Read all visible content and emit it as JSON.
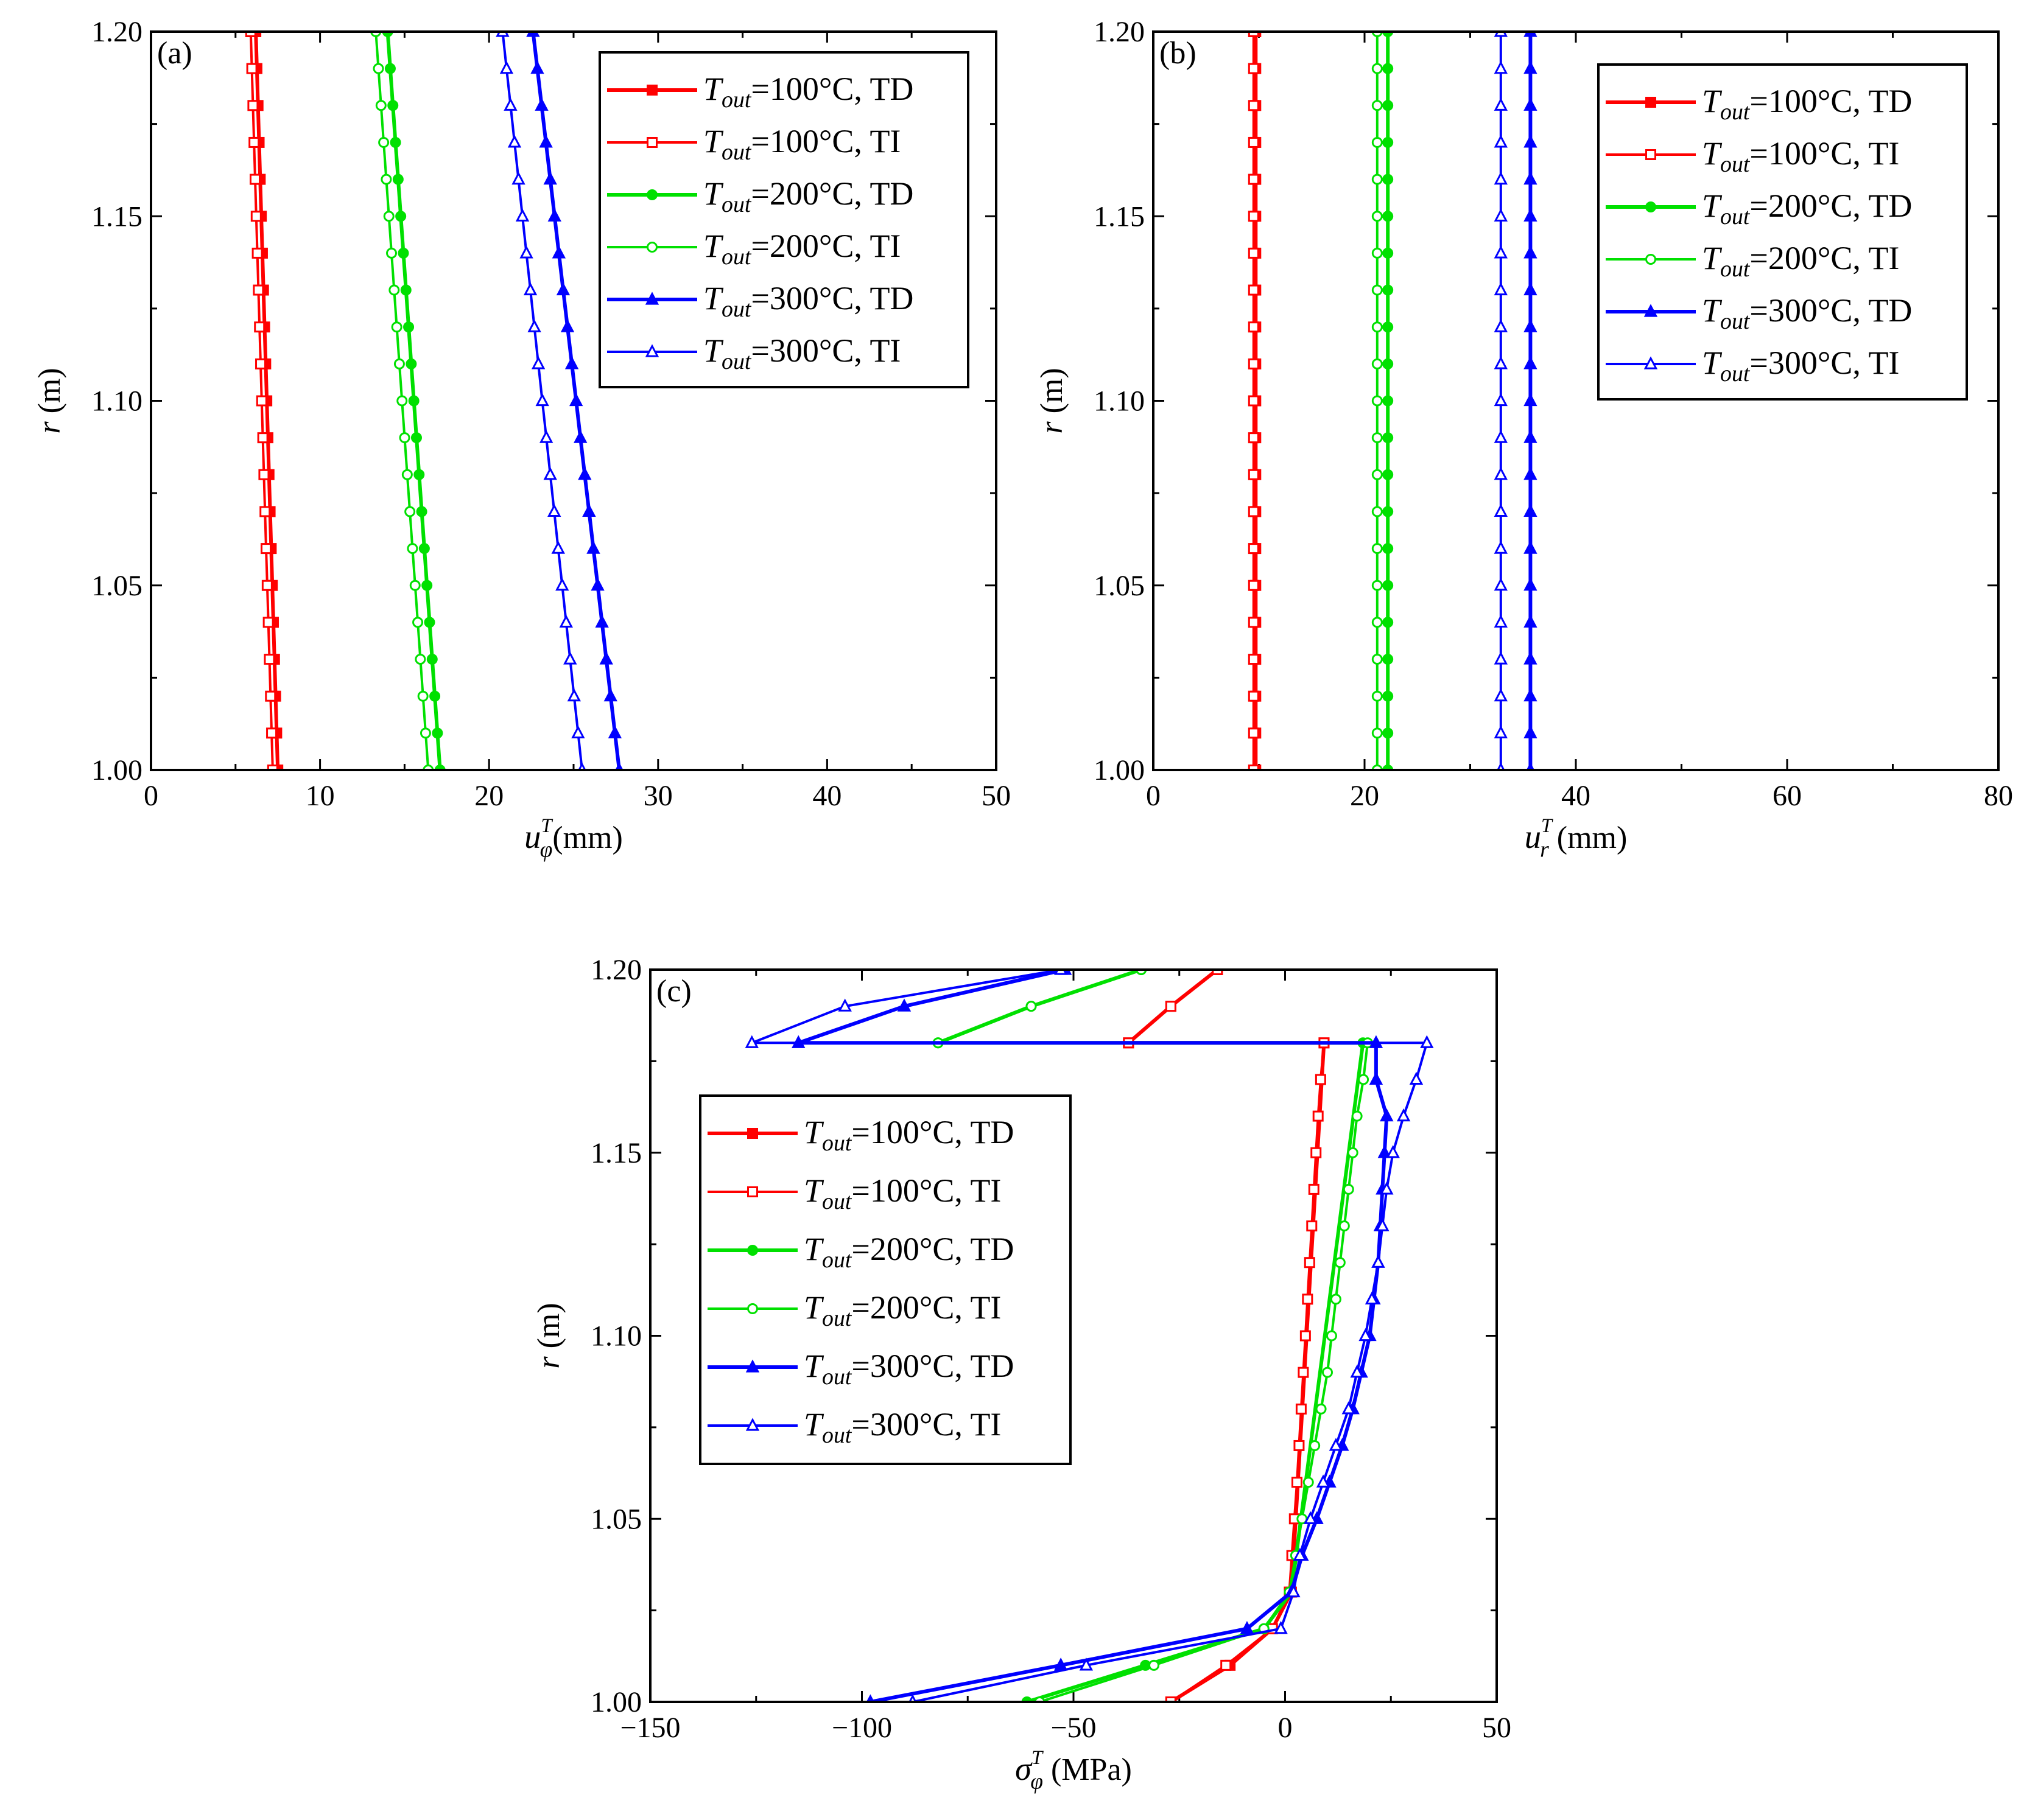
{
  "chart_data": [
    {
      "type": "line",
      "panel": "(a)",
      "xlabel_sym": "u",
      "xlabel_sup": "T",
      "xlabel_sub": "φ",
      "xlabel_unit": "(mm)",
      "ylabel_sym": "r",
      "ylabel_unit": " (m)",
      "xlim": [
        0,
        50
      ],
      "ylim": [
        1.0,
        1.2
      ],
      "xticks": [
        0,
        10,
        20,
        30,
        40,
        50
      ],
      "xticklabels": [
        "0",
        "10",
        "20",
        "30",
        "40",
        "50"
      ],
      "yticks": [
        1.0,
        1.05,
        1.1,
        1.15,
        1.2
      ],
      "yticklabels": [
        "1.00",
        "1.05",
        "1.10",
        "1.15",
        "1.20"
      ],
      "legend_position": "top-right",
      "series": [
        {
          "name": "T_out=100°C, TD",
          "temp": "100",
          "model": "TD",
          "color": "#ff0000",
          "marker": "square",
          "filled": true,
          "r": [
            1.0,
            1.2
          ],
          "x": [
            7.5,
            6.2
          ]
        },
        {
          "name": "T_out=100°C, TI",
          "temp": "100",
          "model": "TI",
          "color": "#ff0000",
          "marker": "square",
          "filled": false,
          "r": [
            1.0,
            1.2
          ],
          "x": [
            7.2,
            5.9
          ]
        },
        {
          "name": "T_out=200°C, TD",
          "temp": "200",
          "model": "TD",
          "color": "#00e000",
          "marker": "circle",
          "filled": true,
          "r": [
            1.0,
            1.2
          ],
          "x": [
            17.1,
            14.0
          ]
        },
        {
          "name": "T_out=200°C, TI",
          "temp": "200",
          "model": "TI",
          "color": "#00e000",
          "marker": "circle",
          "filled": false,
          "r": [
            1.0,
            1.2
          ],
          "x": [
            16.4,
            13.3
          ]
        },
        {
          "name": "T_out=300°C, TD",
          "temp": "300",
          "model": "TD",
          "color": "#0000ff",
          "marker": "triangle",
          "filled": true,
          "r": [
            1.0,
            1.2
          ],
          "x": [
            27.7,
            22.6
          ]
        },
        {
          "name": "T_out=300°C, TI",
          "temp": "300",
          "model": "TI",
          "color": "#0000ff",
          "marker": "triangle",
          "filled": false,
          "r": [
            1.0,
            1.2
          ],
          "x": [
            25.5,
            20.8
          ]
        }
      ]
    },
    {
      "type": "line",
      "panel": "(b)",
      "xlabel_sym": "u",
      "xlabel_sup": "T",
      "xlabel_sub": "r",
      "xlabel_unit": " (mm)",
      "ylabel_sym": "r",
      "ylabel_unit": " (m)",
      "xlim": [
        0,
        80
      ],
      "ylim": [
        1.0,
        1.2
      ],
      "xticks": [
        0,
        20,
        40,
        60,
        80
      ],
      "xticklabels": [
        "0",
        "20",
        "40",
        "60",
        "80"
      ],
      "yticks": [
        1.0,
        1.05,
        1.1,
        1.15,
        1.2
      ],
      "yticklabels": [
        "1.00",
        "1.05",
        "1.10",
        "1.15",
        "1.20"
      ],
      "legend_position": "top-right",
      "series": [
        {
          "name": "T_out=100°C, TD",
          "temp": "100",
          "model": "TD",
          "color": "#ff0000",
          "marker": "square",
          "filled": true,
          "r": [
            1.0,
            1.2
          ],
          "x": [
            9.7,
            9.7
          ]
        },
        {
          "name": "T_out=100°C, TI",
          "temp": "100",
          "model": "TI",
          "color": "#ff0000",
          "marker": "square",
          "filled": false,
          "r": [
            1.0,
            1.2
          ],
          "x": [
            9.5,
            9.5
          ]
        },
        {
          "name": "T_out=200°C, TD",
          "temp": "200",
          "model": "TD",
          "color": "#00e000",
          "marker": "circle",
          "filled": true,
          "r": [
            1.0,
            1.2
          ],
          "x": [
            22.2,
            22.2
          ]
        },
        {
          "name": "T_out=200°C, TI",
          "temp": "200",
          "model": "TI",
          "color": "#00e000",
          "marker": "circle",
          "filled": false,
          "r": [
            1.0,
            1.2
          ],
          "x": [
            21.2,
            21.2
          ]
        },
        {
          "name": "T_out=300°C, TD",
          "temp": "300",
          "model": "TD",
          "color": "#0000ff",
          "marker": "triangle",
          "filled": true,
          "r": [
            1.0,
            1.2
          ],
          "x": [
            35.7,
            35.7
          ]
        },
        {
          "name": "T_out=300°C, TI",
          "temp": "300",
          "model": "TI",
          "color": "#0000ff",
          "marker": "triangle",
          "filled": false,
          "r": [
            1.0,
            1.2
          ],
          "x": [
            32.9,
            32.9
          ]
        }
      ]
    },
    {
      "type": "line",
      "panel": "(c)",
      "xlabel_sym": "σ",
      "xlabel_sup": "T",
      "xlabel_sub": "φ",
      "xlabel_unit": " (MPa)",
      "ylabel_sym": "r",
      "ylabel_unit": " (m)",
      "xlim": [
        -150,
        50
      ],
      "ylim": [
        1.0,
        1.2
      ],
      "xticks": [
        -150,
        -100,
        -50,
        0,
        50
      ],
      "xticklabels": [
        "−150",
        "−100",
        "−50",
        "0",
        "50"
      ],
      "yticks": [
        1.0,
        1.05,
        1.1,
        1.15,
        1.2
      ],
      "yticklabels": [
        "1.00",
        "1.05",
        "1.10",
        "1.15",
        "1.20"
      ],
      "legend_position": "center-left",
      "series": [
        {
          "name": "T_out=100°C, TD",
          "temp": "100",
          "model": "TD",
          "color": "#ff0000",
          "marker": "square",
          "filled": true,
          "r": [
            1.0,
            1.01,
            1.02,
            1.03,
            1.18,
            1.18,
            1.19,
            1.2
          ],
          "x": [
            -27,
            -13,
            -3,
            1.5,
            9.2,
            -37,
            -27,
            -16
          ]
        },
        {
          "name": "T_out=100°C, TI",
          "temp": "100",
          "model": "TI",
          "color": "#ff0000",
          "marker": "square",
          "filled": false,
          "r": [
            1.0,
            1.01,
            1.02,
            1.03,
            1.04,
            1.05,
            1.06,
            1.07,
            1.08,
            1.09,
            1.1,
            1.11,
            1.12,
            1.13,
            1.14,
            1.15,
            1.16,
            1.17,
            1.18,
            1.18,
            1.19,
            1.2
          ],
          "x": [
            -27,
            -14,
            -3,
            1,
            1.6,
            2.2,
            2.8,
            3.3,
            3.8,
            4.3,
            4.8,
            5.3,
            5.8,
            6.3,
            6.8,
            7.3,
            7.8,
            8.4,
            9.2,
            -37,
            -27,
            -16
          ]
        },
        {
          "name": "T_out=200°C, TD",
          "temp": "200",
          "model": "TD",
          "color": "#00e000",
          "marker": "circle",
          "filled": true,
          "r": [
            1.0,
            1.01,
            1.02,
            1.03,
            1.18,
            1.18,
            1.19,
            1.2
          ],
          "x": [
            -61,
            -33,
            -5,
            1.5,
            18.4,
            -82,
            -60,
            -34
          ]
        },
        {
          "name": "T_out=200°C, TI",
          "temp": "200",
          "model": "TI",
          "color": "#00e000",
          "marker": "circle",
          "filled": false,
          "r": [
            1.0,
            1.01,
            1.02,
            1.03,
            1.04,
            1.05,
            1.06,
            1.07,
            1.08,
            1.09,
            1.1,
            1.11,
            1.12,
            1.13,
            1.14,
            1.15,
            1.16,
            1.17,
            1.18,
            1.18,
            1.19,
            1.2
          ],
          "x": [
            -58,
            -31,
            -5,
            1,
            2.5,
            4,
            5.5,
            7,
            8.5,
            10,
            11,
            12,
            13,
            14,
            15,
            16,
            17,
            18.5,
            19.5,
            -82,
            -60,
            -34
          ]
        },
        {
          "name": "T_out=300°C, TD",
          "temp": "300",
          "model": "TD",
          "color": "#0000ff",
          "marker": "triangle",
          "filled": true,
          "r": [
            1.0,
            1.01,
            1.02,
            1.03,
            1.04,
            1.05,
            1.06,
            1.07,
            1.08,
            1.09,
            1.1,
            1.11,
            1.12,
            1.13,
            1.14,
            1.15,
            1.16,
            1.17,
            1.18,
            1.18,
            1.19,
            1.2
          ],
          "x": [
            -98,
            -53,
            -9,
            1.5,
            4,
            7.5,
            10.5,
            13.5,
            16,
            18,
            20,
            21,
            22,
            22.5,
            23,
            23.5,
            24,
            21.5,
            21.5,
            -115,
            -90,
            -52
          ]
        },
        {
          "name": "T_out=300°C, TI",
          "temp": "300",
          "model": "TI",
          "color": "#0000ff",
          "marker": "triangle",
          "filled": false,
          "r": [
            1.0,
            1.01,
            1.02,
            1.03,
            1.04,
            1.05,
            1.06,
            1.07,
            1.08,
            1.09,
            1.1,
            1.11,
            1.12,
            1.13,
            1.14,
            1.15,
            1.16,
            1.17,
            1.18,
            1.18,
            1.19,
            1.2
          ],
          "x": [
            -88,
            -47,
            -1,
            2,
            3.5,
            6,
            9,
            12,
            15,
            17,
            19,
            20.5,
            22,
            23,
            24,
            25.5,
            28,
            31,
            33.5,
            -126,
            -104,
            -53
          ]
        }
      ]
    }
  ]
}
